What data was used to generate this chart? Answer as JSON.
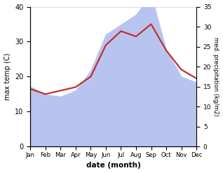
{
  "months": [
    "Jan",
    "Feb",
    "Mar",
    "Apr",
    "May",
    "Jun",
    "Jul",
    "Aug",
    "Sep",
    "Oct",
    "Nov",
    "Dec"
  ],
  "temperature": [
    16.5,
    15.0,
    16.0,
    17.0,
    20.0,
    29.0,
    33.0,
    31.5,
    35.0,
    27.5,
    22.0,
    19.5
  ],
  "precipitation": [
    15.0,
    13.0,
    12.5,
    14.0,
    19.0,
    28.0,
    30.5,
    33.0,
    38.0,
    24.0,
    17.5,
    16.0
  ],
  "temp_color": "#c03030",
  "precip_color": "#b8c4f0",
  "ylabel_left": "max temp (C)",
  "ylabel_right": "med. precipitation (kg/m2)",
  "xlabel": "date (month)",
  "ylim_left": [
    0,
    40
  ],
  "ylim_right": [
    0,
    35
  ],
  "yticks_left": [
    0,
    10,
    20,
    30,
    40
  ],
  "yticks_right": [
    0,
    5,
    10,
    15,
    20,
    25,
    30,
    35
  ],
  "background_color": "#ffffff",
  "figure_color": "#ffffff"
}
